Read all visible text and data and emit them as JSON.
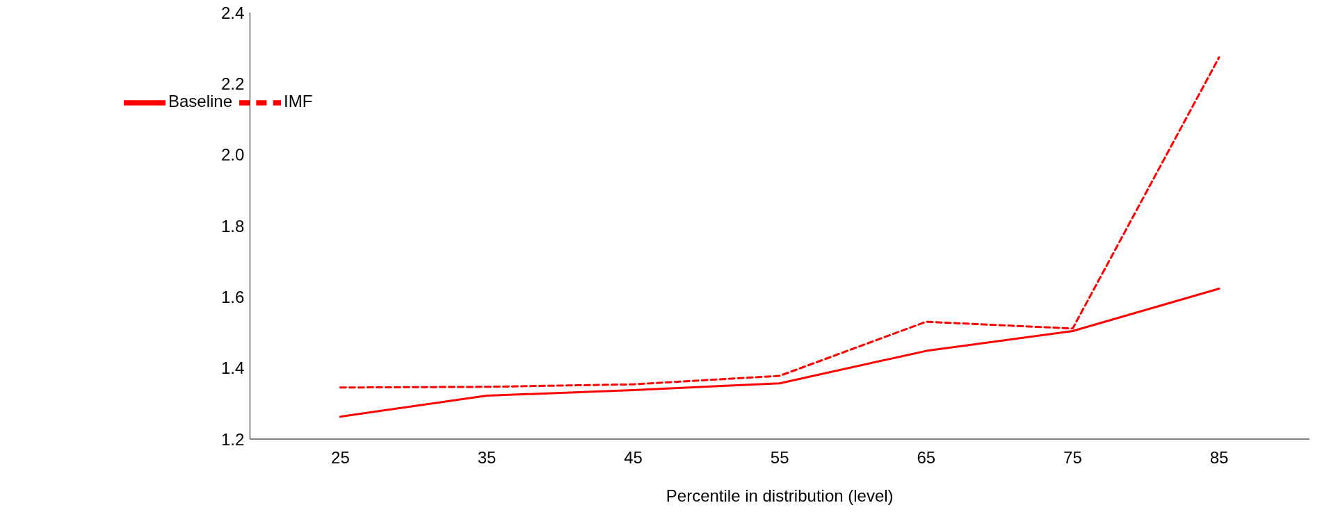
{
  "chart_data": {
    "type": "line",
    "xlabel": "Percentile in distribution (level)",
    "categories": [
      "25",
      "35",
      "45",
      "55",
      "65",
      "75",
      "85"
    ],
    "series": [
      {
        "name": "Baseline",
        "color": "#ff0000",
        "line_style": "solid",
        "values": [
          1.263,
          1.322,
          1.338,
          1.357,
          1.448,
          1.504,
          1.623
        ]
      },
      {
        "name": "IMF",
        "color": "#ff0000",
        "line_style": "dashed",
        "values": [
          1.345,
          1.347,
          1.354,
          1.378,
          1.53,
          1.511,
          2.274
        ]
      }
    ],
    "ylim": [
      1.2,
      2.4
    ],
    "yticks": [
      1.2,
      1.4,
      1.6,
      1.8,
      {
        "value": 2,
        "label": "2.0"
      },
      2.2,
      2.4
    ],
    "grid": false,
    "legend": "top left",
    "marker": "none"
  }
}
